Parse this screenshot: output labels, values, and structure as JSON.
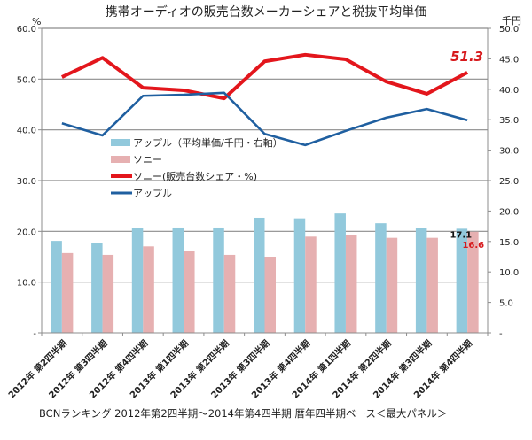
{
  "chart_data": {
    "type": "bar+line",
    "title": "携帯オーディオの販売台数メーカーシェアと税抜平均単価",
    "left_axis": {
      "unit": "%",
      "range": [
        0,
        60
      ],
      "ticks": [
        "-",
        "10.0",
        "20.0",
        "30.0",
        "40.0",
        "50.0",
        "60.0"
      ]
    },
    "right_axis": {
      "unit": "千円",
      "range": [
        0,
        50
      ],
      "ticks": [
        "-",
        "5.0",
        "10.0",
        "15.0",
        "20.0",
        "25.0",
        "30.0",
        "35.0",
        "40.0",
        "45.0",
        "50.0"
      ]
    },
    "grid": true,
    "categories": [
      "2012年 第2四半期",
      "2012年 第3四半期",
      "2012年 第4四半期",
      "2013年 第1四半期",
      "2013年 第2四半期",
      "2013年 第3四半期",
      "2013年 第4四半期",
      "2014年 第1四半期",
      "2014年 第2四半期",
      "2014年 第3四半期",
      "2014年 第4四半期"
    ],
    "series": [
      {
        "name": "アップル（平均単価/千円・右軸）",
        "kind": "bar",
        "axis": "right",
        "color": "#92c9dc",
        "values": [
          15.1,
          14.8,
          17.2,
          17.3,
          17.3,
          18.9,
          18.8,
          19.6,
          18.0,
          17.2,
          17.1
        ]
      },
      {
        "name": "ソニー",
        "kind": "bar",
        "axis": "right",
        "color": "#e6b0b1",
        "values": [
          13.1,
          12.8,
          14.2,
          13.5,
          12.8,
          12.5,
          15.8,
          16.0,
          15.6,
          15.6,
          16.6
        ]
      },
      {
        "name": "ソニー(販売台数シェア・%)",
        "kind": "line",
        "axis": "left",
        "color": "#e3161c",
        "values": [
          50.4,
          54.2,
          48.3,
          47.8,
          46.2,
          53.5,
          54.8,
          53.9,
          49.5,
          47.1,
          51.3
        ]
      },
      {
        "name": "アップル",
        "kind": "line",
        "axis": "left",
        "color": "#1f5fa0",
        "values": [
          41.3,
          38.9,
          46.7,
          46.9,
          47.3,
          39.2,
          37.0,
          39.8,
          42.4,
          44.1,
          41.9
        ]
      }
    ],
    "annotations": [
      {
        "text": "51.3",
        "series": "ソニー(販売台数シェア・%)",
        "index": 10,
        "style": "red-large"
      },
      {
        "text": "17.1",
        "series": "アップル（平均単価/千円・右軸）",
        "index": 10,
        "style": "black-small"
      },
      {
        "text": "16.6",
        "series": "ソニー",
        "index": 10,
        "style": "red-small"
      }
    ],
    "legend": "center-left",
    "caption": "BCNランキング 2012年第2四半期～2014年第4四半期 暦年四半期ベース＜最大パネル＞"
  }
}
